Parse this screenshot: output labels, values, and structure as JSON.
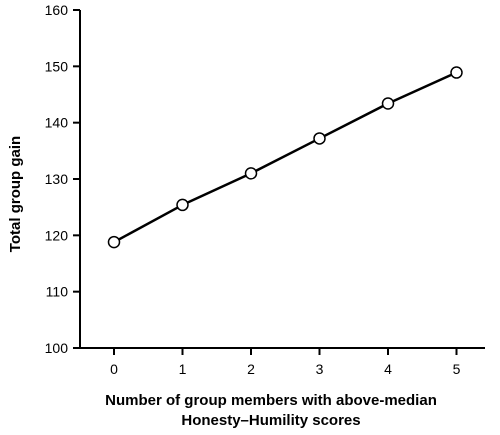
{
  "chart_data": {
    "type": "line",
    "title": "",
    "xlabel_lines": [
      "Number of group members with above-median",
      "Honesty–Humility scores"
    ],
    "ylabel": "Total group gain",
    "x": [
      0,
      1,
      2,
      3,
      4,
      5
    ],
    "xlim": [
      -0.5,
      5.5
    ],
    "ylim": [
      100,
      160
    ],
    "yticks": [
      100,
      110,
      120,
      130,
      140,
      150,
      160
    ],
    "xticks": [
      0,
      1,
      2,
      3,
      4,
      5
    ],
    "grid": false,
    "legend": "none",
    "series": [
      {
        "values": [
          118.8,
          125.4,
          131.0,
          137.2,
          143.4,
          148.9
        ]
      }
    ],
    "colors": {
      "line": "#000000",
      "marker_fill": "#ffffff",
      "marker_stroke": "#000000"
    }
  }
}
